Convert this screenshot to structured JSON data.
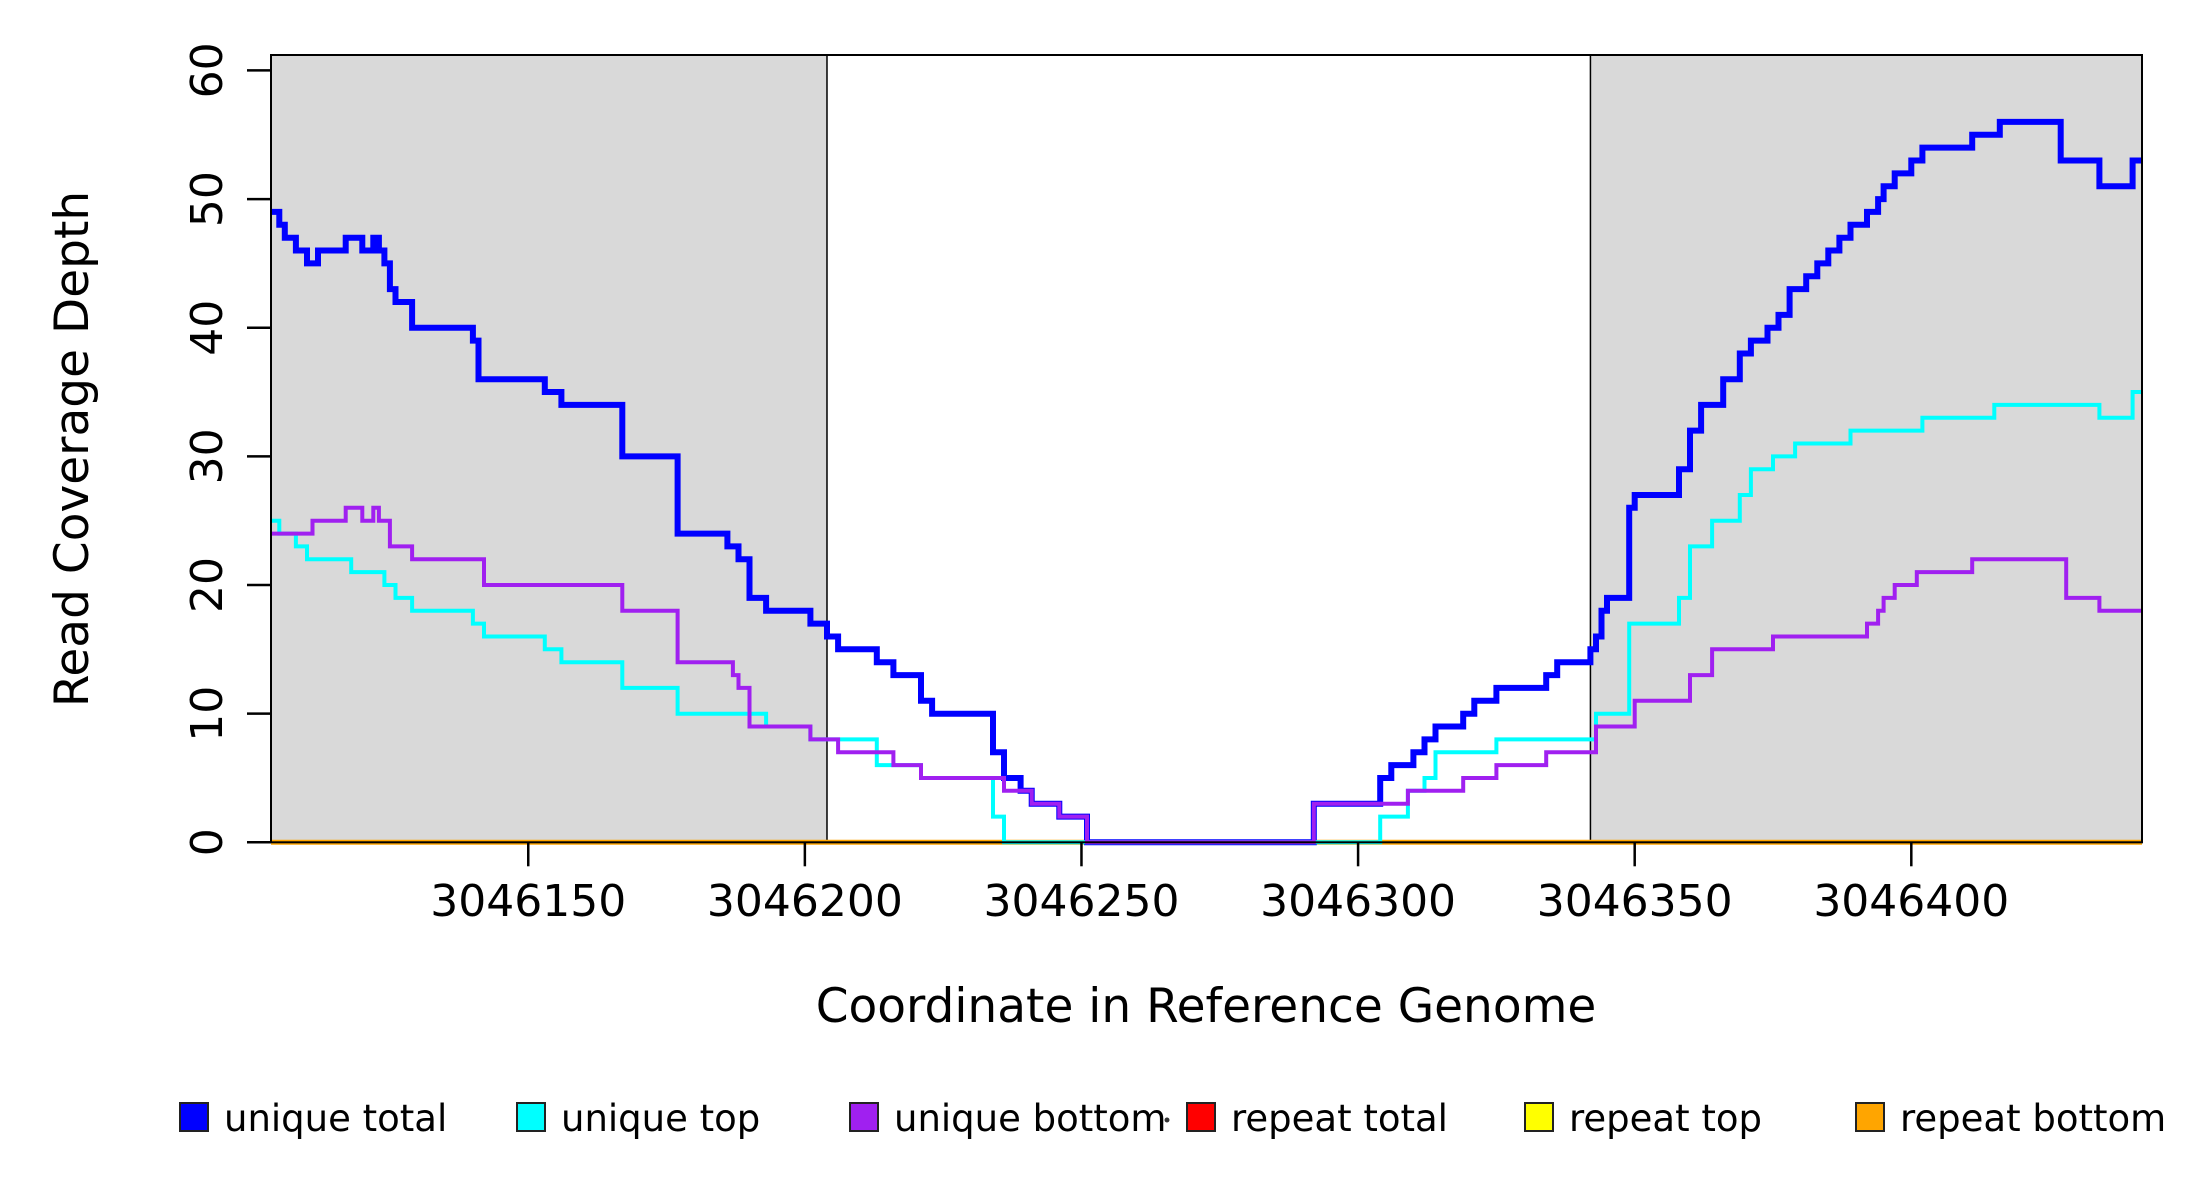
{
  "chart_data": {
    "type": "line",
    "subtype": "step",
    "title": "",
    "xlabel": "Coordinate in Reference Genome",
    "ylabel": "Read Coverage Depth",
    "xlim": [
      3046103.5,
      3046441.7
    ],
    "ylim": [
      0,
      61.2
    ],
    "x_ticks": [
      3046150,
      3046200,
      3046250,
      3046300,
      3046350,
      3046400
    ],
    "y_ticks": [
      0,
      10,
      20,
      30,
      40,
      50,
      60
    ],
    "grid": false,
    "legend_position": "bottom",
    "plot_border_color": "#000000",
    "shaded_regions": [
      {
        "x0": 3046103.5,
        "x1": 3046204,
        "color": "#D9D9D9"
      },
      {
        "x0": 3046342,
        "x1": 3046441.7,
        "color": "#D9D9D9"
      }
    ],
    "series": [
      {
        "name": "repeat total",
        "color": "#FF0000",
        "width": 4,
        "points": [
          [
            3046104,
            0
          ]
        ]
      },
      {
        "name": "repeat top",
        "color": "#FFFF00",
        "width": 4,
        "points": [
          [
            3046104,
            0
          ]
        ]
      },
      {
        "name": "repeat bottom",
        "color": "#FFA500",
        "width": 5,
        "points": [
          [
            3046104,
            0
          ]
        ]
      },
      {
        "name": "unique total",
        "color": "#0000FF",
        "width": 6,
        "points": [
          [
            3046104,
            49
          ],
          [
            3046105,
            48
          ],
          [
            3046106,
            47
          ],
          [
            3046108,
            46
          ],
          [
            3046110,
            45
          ],
          [
            3046112,
            46
          ],
          [
            3046117,
            47
          ],
          [
            3046120,
            46
          ],
          [
            3046122,
            47
          ],
          [
            3046123,
            46
          ],
          [
            3046124,
            45
          ],
          [
            3046125,
            43
          ],
          [
            3046126,
            42
          ],
          [
            3046129,
            40
          ],
          [
            3046140,
            39
          ],
          [
            3046141,
            36
          ],
          [
            3046153,
            35
          ],
          [
            3046156,
            34
          ],
          [
            3046167,
            30
          ],
          [
            3046177,
            24
          ],
          [
            3046186,
            23
          ],
          [
            3046188,
            22
          ],
          [
            3046190,
            19
          ],
          [
            3046193,
            18
          ],
          [
            3046201,
            17
          ],
          [
            3046204,
            16
          ],
          [
            3046206,
            15
          ],
          [
            3046213,
            14
          ],
          [
            3046216,
            13
          ],
          [
            3046221,
            11
          ],
          [
            3046223,
            10
          ],
          [
            3046234,
            7
          ],
          [
            3046236,
            5
          ],
          [
            3046239,
            4
          ],
          [
            3046241,
            3
          ],
          [
            3046246,
            2
          ],
          [
            3046251,
            0
          ],
          [
            3046292,
            3
          ],
          [
            3046304,
            5
          ],
          [
            3046306,
            6
          ],
          [
            3046310,
            7
          ],
          [
            3046312,
            8
          ],
          [
            3046314,
            9
          ],
          [
            3046319,
            10
          ],
          [
            3046321,
            11
          ],
          [
            3046325,
            12
          ],
          [
            3046334,
            13
          ],
          [
            3046336,
            14
          ],
          [
            3046342,
            15
          ],
          [
            3046343,
            16
          ],
          [
            3046344,
            18
          ],
          [
            3046345,
            19
          ],
          [
            3046349,
            26
          ],
          [
            3046350,
            27
          ],
          [
            3046358,
            29
          ],
          [
            3046360,
            32
          ],
          [
            3046362,
            34
          ],
          [
            3046366,
            36
          ],
          [
            3046369,
            38
          ],
          [
            3046371,
            39
          ],
          [
            3046374,
            40
          ],
          [
            3046376,
            41
          ],
          [
            3046378,
            43
          ],
          [
            3046381,
            44
          ],
          [
            3046383,
            45
          ],
          [
            3046385,
            46
          ],
          [
            3046387,
            47
          ],
          [
            3046389,
            48
          ],
          [
            3046392,
            49
          ],
          [
            3046394,
            50
          ],
          [
            3046395,
            51
          ],
          [
            3046397,
            52
          ],
          [
            3046400,
            53
          ],
          [
            3046402,
            54
          ],
          [
            3046411,
            55
          ],
          [
            3046416,
            56
          ],
          [
            3046427,
            53
          ],
          [
            3046434,
            51
          ],
          [
            3046440,
            53
          ]
        ]
      },
      {
        "name": "unique top",
        "color": "#00FFFF",
        "width": 4,
        "points": [
          [
            3046104,
            25
          ],
          [
            3046105,
            24
          ],
          [
            3046108,
            23
          ],
          [
            3046110,
            22
          ],
          [
            3046118,
            21
          ],
          [
            3046124,
            20
          ],
          [
            3046126,
            19
          ],
          [
            3046129,
            18
          ],
          [
            3046140,
            17
          ],
          [
            3046142,
            16
          ],
          [
            3046153,
            15
          ],
          [
            3046156,
            14
          ],
          [
            3046167,
            12
          ],
          [
            3046177,
            10
          ],
          [
            3046193,
            9
          ],
          [
            3046201,
            8
          ],
          [
            3046213,
            6
          ],
          [
            3046221,
            5
          ],
          [
            3046234,
            2
          ],
          [
            3046236,
            0
          ],
          [
            3046304,
            2
          ],
          [
            3046309,
            4
          ],
          [
            3046312,
            5
          ],
          [
            3046314,
            7
          ],
          [
            3046325,
            8
          ],
          [
            3046343,
            10
          ],
          [
            3046349,
            17
          ],
          [
            3046358,
            19
          ],
          [
            3046360,
            23
          ],
          [
            3046364,
            25
          ],
          [
            3046369,
            27
          ],
          [
            3046371,
            29
          ],
          [
            3046375,
            30
          ],
          [
            3046379,
            31
          ],
          [
            3046389,
            32
          ],
          [
            3046402,
            33
          ],
          [
            3046415,
            34
          ],
          [
            3046434,
            33
          ],
          [
            3046440,
            35
          ]
        ]
      },
      {
        "name": "unique bottom",
        "color": "#A020F0",
        "width": 4,
        "points": [
          [
            3046104,
            24
          ],
          [
            3046111,
            25
          ],
          [
            3046117,
            26
          ],
          [
            3046120,
            25
          ],
          [
            3046122,
            26
          ],
          [
            3046123,
            25
          ],
          [
            3046125,
            23
          ],
          [
            3046129,
            22
          ],
          [
            3046142,
            20
          ],
          [
            3046167,
            18
          ],
          [
            3046177,
            14
          ],
          [
            3046187,
            13
          ],
          [
            3046188,
            12
          ],
          [
            3046190,
            9
          ],
          [
            3046201,
            8
          ],
          [
            3046206,
            7
          ],
          [
            3046216,
            6
          ],
          [
            3046221,
            5
          ],
          [
            3046236,
            4
          ],
          [
            3046241,
            3
          ],
          [
            3046246,
            2
          ],
          [
            3046251,
            0
          ],
          [
            3046292,
            3
          ],
          [
            3046309,
            4
          ],
          [
            3046319,
            5
          ],
          [
            3046325,
            6
          ],
          [
            3046334,
            7
          ],
          [
            3046343,
            9
          ],
          [
            3046350,
            11
          ],
          [
            3046360,
            13
          ],
          [
            3046364,
            15
          ],
          [
            3046375,
            16
          ],
          [
            3046392,
            17
          ],
          [
            3046394,
            18
          ],
          [
            3046395,
            19
          ],
          [
            3046397,
            20
          ],
          [
            3046401,
            21
          ],
          [
            3046411,
            22
          ],
          [
            3046428,
            19
          ],
          [
            3046434,
            18
          ]
        ]
      }
    ]
  },
  "legend": {
    "items": [
      {
        "label": "unique total",
        "color": "#0000FF"
      },
      {
        "label": "unique top",
        "color": "#00FFFF"
      },
      {
        "label": "unique bottom",
        "color": "#A020F0"
      },
      {
        "label": "repeat total",
        "color": "#FF0000"
      },
      {
        "label": "repeat top",
        "color": "#FFFF00"
      },
      {
        "label": "repeat bottom",
        "color": "#FFA500"
      }
    ]
  }
}
